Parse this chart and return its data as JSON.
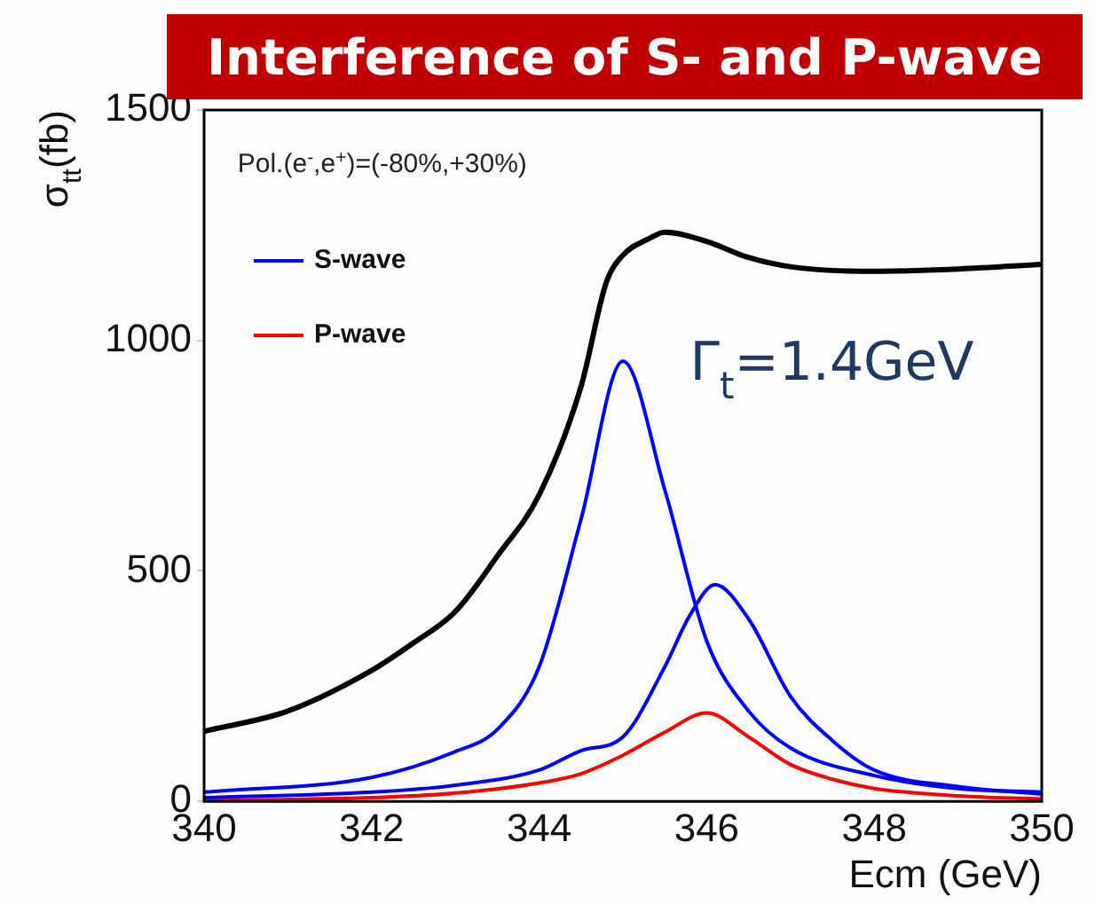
{
  "chart_data": {
    "type": "line",
    "title": "Interference of S- and P-wave",
    "xlabel": "Ecm (GeV)",
    "ylabel": "σ$_{tt}$(fb)",
    "annotations": [
      "Pol.(e$^{-}$,e$^{+}$)=(-80%,+30%)",
      "Γ$_{t}$=1.4GeV"
    ],
    "xlim": [
      340,
      350
    ],
    "xticks": [
      340,
      342,
      344,
      346,
      348,
      350
    ],
    "ylim": [
      0,
      1500
    ],
    "yticks": [
      0,
      500,
      1000,
      1500
    ],
    "grid": false,
    "legend": "top left",
    "marker": "none",
    "line_style": "solid",
    "series": [
      {
        "color": "#000000",
        "x": [
          340,
          341,
          342,
          342.5,
          343,
          343.5,
          344,
          344.5,
          344.8,
          345,
          345.3,
          345.5,
          346,
          346.5,
          347,
          348,
          349,
          350
        ],
        "values": [
          152,
          196,
          284,
          344,
          412,
          532,
          665,
          900,
          1125,
          1185,
          1220,
          1235,
          1215,
          1180,
          1160,
          1150,
          1155,
          1165
        ]
      },
      {
        "name": "S-wave",
        "color": "#0000ff",
        "x": [
          340,
          342,
          343,
          343.5,
          344,
          344.5,
          345,
          345.5,
          346,
          346.5,
          347,
          348,
          349,
          350
        ],
        "values": [
          20,
          52,
          108,
          156,
          292,
          612,
          955,
          676,
          348,
          196,
          116,
          56,
          28,
          20
        ]
      },
      {
        "color": "#0000ff",
        "x": [
          340,
          342,
          343,
          344,
          344.5,
          345,
          345.5,
          345.8,
          346.1,
          346.5,
          347,
          347.5,
          348,
          349,
          350
        ],
        "values": [
          8,
          20,
          35,
          68,
          110,
          140,
          292,
          404,
          470,
          396,
          228,
          132,
          68,
          32,
          16
        ]
      },
      {
        "name": "P-wave",
        "color": "#ff0000",
        "x": [
          340,
          342,
          343,
          344,
          344.5,
          345,
          345.5,
          346,
          346.5,
          347,
          347.5,
          348,
          349,
          350
        ],
        "values": [
          2,
          8,
          18,
          40,
          60,
          100,
          150,
          192,
          140,
          80,
          48,
          28,
          12,
          5
        ]
      }
    ]
  }
}
